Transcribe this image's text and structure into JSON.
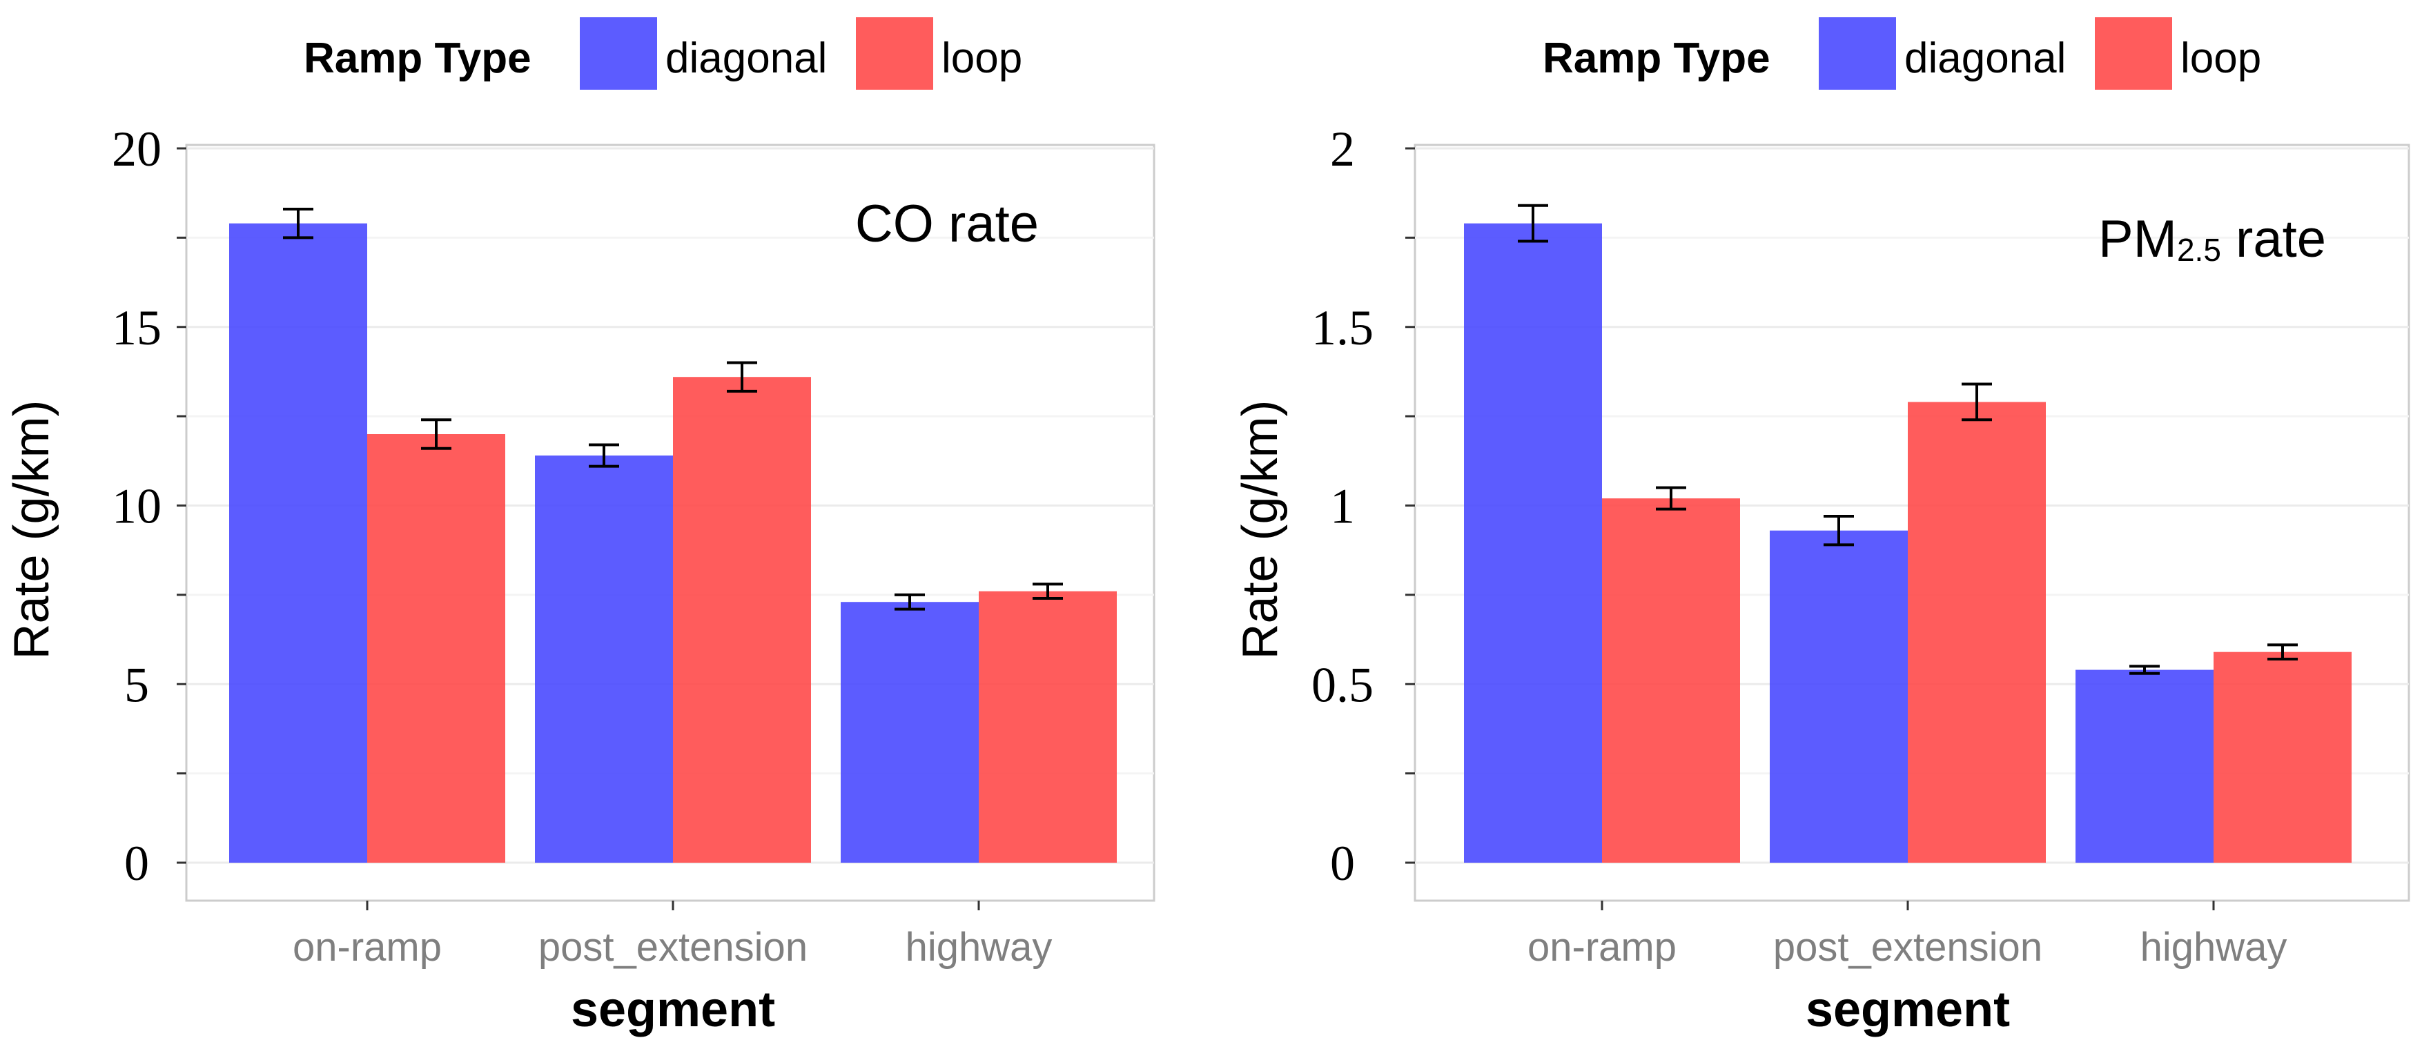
{
  "chart_data": [
    {
      "type": "bar",
      "annotation": "CO rate",
      "xlabel": "segment",
      "ylabel": "Rate (g/km)",
      "legend_title": "Ramp Type",
      "legend_position": "top",
      "categories": [
        "on-ramp",
        "post_extension",
        "highway"
      ],
      "ylim": [
        0,
        20
      ],
      "yticks": [
        0,
        5,
        10,
        15,
        20
      ],
      "grid": true,
      "series": [
        {
          "name": "diagonal",
          "color": "#4a4aff",
          "values": [
            17.9,
            11.4,
            7.3
          ],
          "errors": [
            0.4,
            0.3,
            0.2
          ]
        },
        {
          "name": "loop",
          "color": "#ff4a4a",
          "values": [
            12.0,
            13.6,
            7.6
          ],
          "errors": [
            0.4,
            0.4,
            0.2
          ]
        }
      ]
    },
    {
      "type": "bar",
      "annotation": {
        "main": "PM",
        "subscript": "2.5",
        "suffix": " rate"
      },
      "xlabel": "segment",
      "ylabel": "Rate (g/km)",
      "legend_title": "Ramp Type",
      "legend_position": "top",
      "categories": [
        "on-ramp",
        "post_extension",
        "highway"
      ],
      "ylim": [
        0,
        2
      ],
      "yticks": [
        "0",
        "0.5",
        "1",
        "1.5",
        "2"
      ],
      "grid": true,
      "series": [
        {
          "name": "diagonal",
          "color": "#4a4aff",
          "values": [
            1.79,
            0.93,
            0.54
          ],
          "errors": [
            0.05,
            0.04,
            0.01
          ]
        },
        {
          "name": "loop",
          "color": "#ff4a4a",
          "values": [
            1.02,
            1.29,
            0.59
          ],
          "errors": [
            0.03,
            0.05,
            0.02
          ]
        }
      ]
    }
  ]
}
